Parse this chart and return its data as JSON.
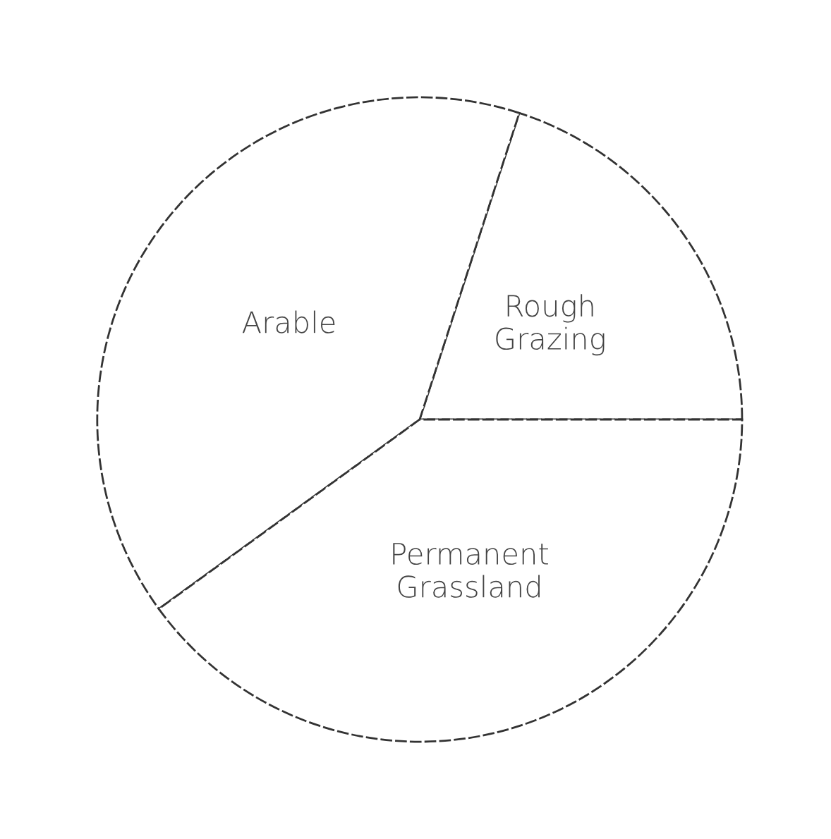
{
  "chart_data": {
    "type": "pie",
    "categories": [
      "Rough\nGrazing",
      "Arable",
      "Permanent\nGrassland"
    ],
    "values": [
      20,
      40,
      40
    ],
    "colors": [
      "#ffffff",
      "#ffffff",
      "#ffffff"
    ]
  }
}
